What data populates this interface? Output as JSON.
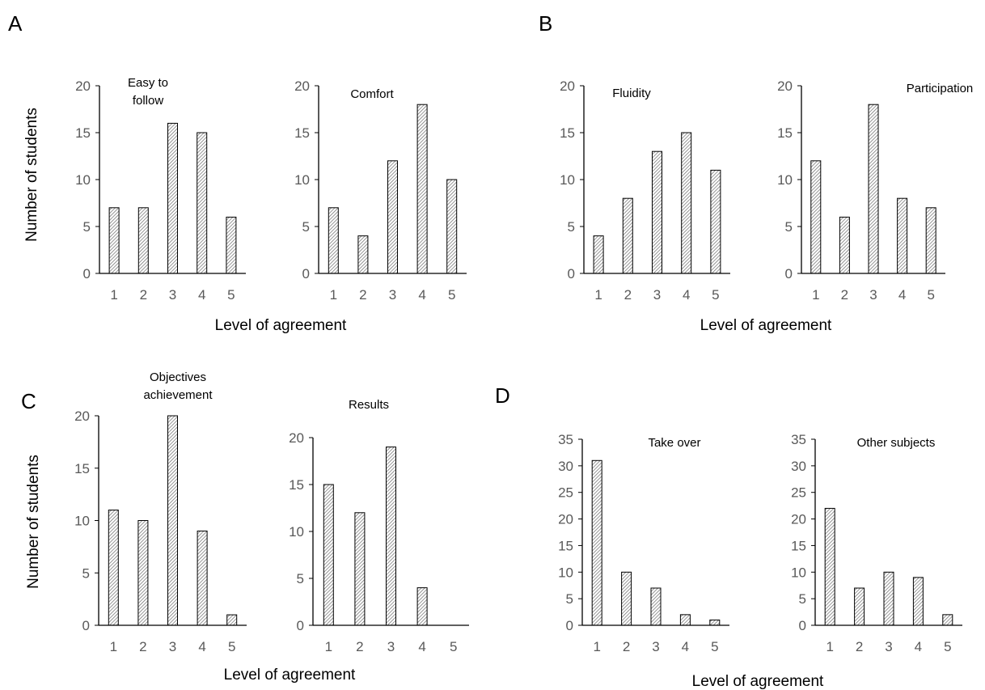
{
  "panels": [
    {
      "id": "A",
      "letter": "A",
      "xlabel": "Level of agreement",
      "ylabel": "Number of students"
    },
    {
      "id": "B",
      "letter": "B",
      "xlabel": "Level of agreement",
      "ylabel": ""
    },
    {
      "id": "C",
      "letter": "C",
      "xlabel": "Level of agreement",
      "ylabel": "Number of students"
    },
    {
      "id": "D",
      "letter": "D",
      "xlabel": "Level of agreement",
      "ylabel": ""
    }
  ],
  "style": {
    "bar_fill": "hatched gray",
    "bar_stroke": "#000000",
    "tick_color": "#595959"
  },
  "chart_data": [
    {
      "panel": "A",
      "type": "bar",
      "title": [
        "Easy to",
        "follow"
      ],
      "categories": [
        "1",
        "2",
        "3",
        "4",
        "5"
      ],
      "values": [
        7,
        7,
        16,
        15,
        6
      ],
      "ylim": [
        0,
        20
      ],
      "yticks": [
        0,
        5,
        10,
        15,
        20
      ]
    },
    {
      "panel": "A",
      "type": "bar",
      "title": [
        "Comfort"
      ],
      "categories": [
        "1",
        "2",
        "3",
        "4",
        "5"
      ],
      "values": [
        7,
        4,
        12,
        18,
        10
      ],
      "ylim": [
        0,
        20
      ],
      "yticks": [
        0,
        5,
        10,
        15,
        20
      ]
    },
    {
      "panel": "B",
      "type": "bar",
      "title": [
        "Fluidity"
      ],
      "categories": [
        "1",
        "2",
        "3",
        "4",
        "5"
      ],
      "values": [
        4,
        8,
        13,
        15,
        11
      ],
      "ylim": [
        0,
        20
      ],
      "yticks": [
        0,
        5,
        10,
        15,
        20
      ]
    },
    {
      "panel": "B",
      "type": "bar",
      "title": [
        "Participation"
      ],
      "categories": [
        "1",
        "2",
        "3",
        "4",
        "5"
      ],
      "values": [
        12,
        6,
        18,
        8,
        7
      ],
      "ylim": [
        0,
        20
      ],
      "yticks": [
        0,
        5,
        10,
        15,
        20
      ]
    },
    {
      "panel": "C",
      "type": "bar",
      "title": [
        "Objectives",
        "achievement"
      ],
      "categories": [
        "1",
        "2",
        "3",
        "4",
        "5"
      ],
      "values": [
        11,
        10,
        20,
        9,
        1
      ],
      "ylim": [
        0,
        20
      ],
      "yticks": [
        0,
        5,
        10,
        15,
        20
      ]
    },
    {
      "panel": "C",
      "type": "bar",
      "title": [
        "Results"
      ],
      "categories": [
        "1",
        "2",
        "3",
        "4",
        "5"
      ],
      "values": [
        15,
        12,
        19,
        4,
        0
      ],
      "ylim": [
        0,
        20
      ],
      "yticks": [
        0,
        5,
        10,
        15,
        20
      ]
    },
    {
      "panel": "D",
      "type": "bar",
      "title": [
        "Take over"
      ],
      "categories": [
        "1",
        "2",
        "3",
        "4",
        "5"
      ],
      "values": [
        31,
        10,
        7,
        2,
        1
      ],
      "ylim": [
        0,
        35
      ],
      "yticks": [
        0,
        5,
        10,
        15,
        20,
        25,
        30,
        35
      ]
    },
    {
      "panel": "D",
      "type": "bar",
      "title": [
        "Other subjects"
      ],
      "categories": [
        "1",
        "2",
        "3",
        "4",
        "5"
      ],
      "values": [
        22,
        7,
        10,
        9,
        2
      ],
      "ylim": [
        0,
        35
      ],
      "yticks": [
        0,
        5,
        10,
        15,
        20,
        25,
        30,
        35
      ]
    }
  ]
}
